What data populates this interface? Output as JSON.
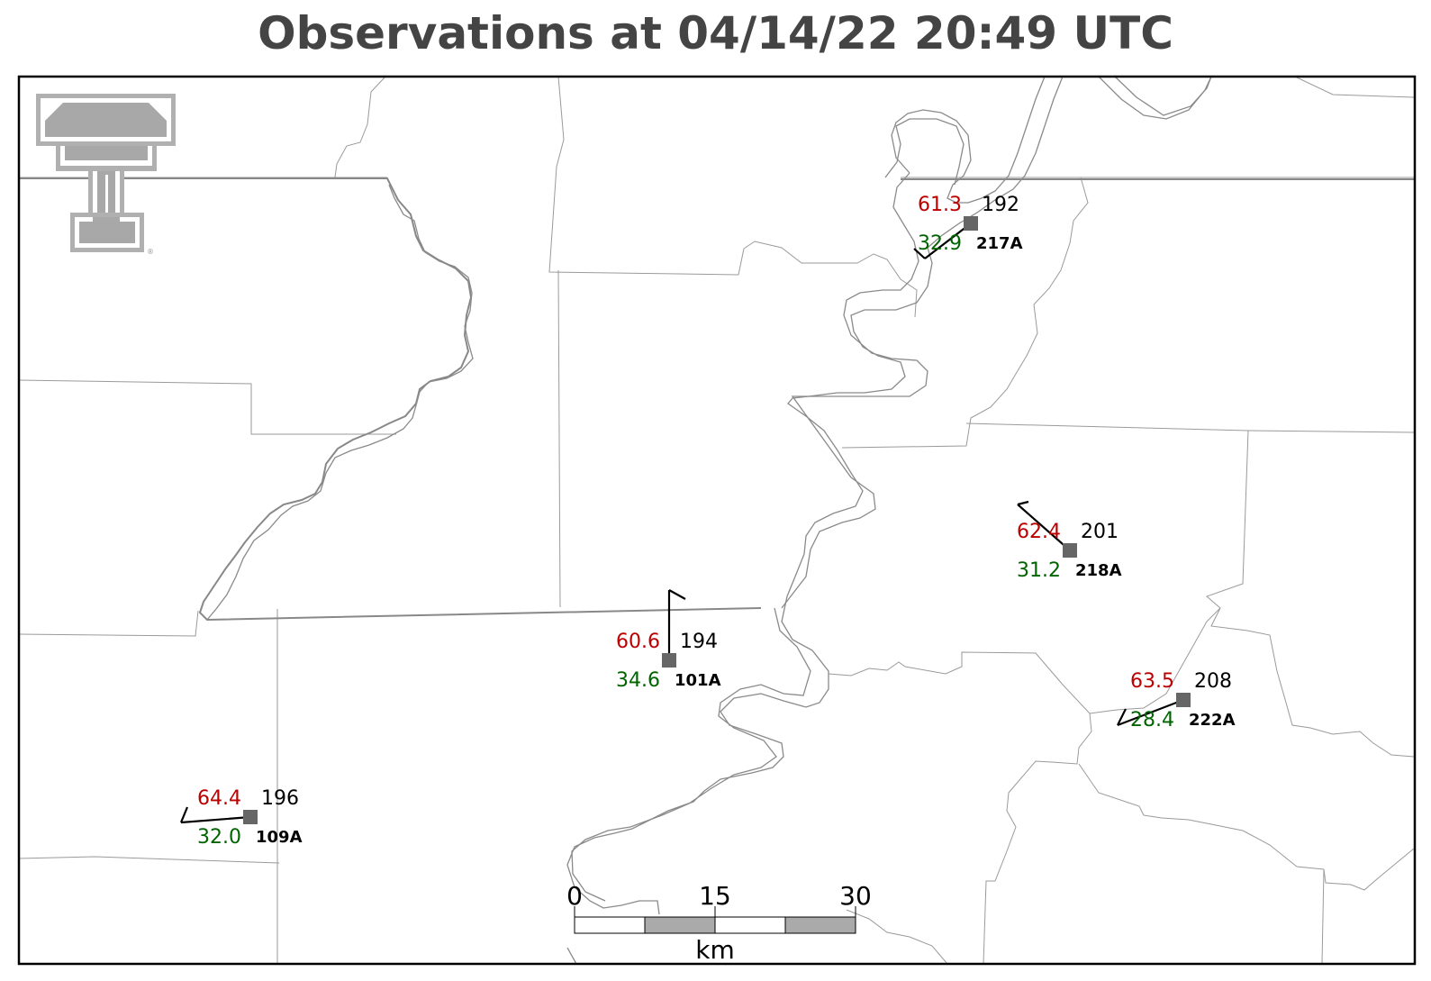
{
  "title": "Observations at 04/14/22 20:49 UTC",
  "logo": {
    "name": "texas-tech-double-t-logo",
    "mark": "®"
  },
  "scale_bar": {
    "ticks": [
      "0",
      "15",
      "30"
    ],
    "unit": "km"
  },
  "colors": {
    "temperature": "#bb0000",
    "dewpoint": "#006400",
    "station_marker": "#666666",
    "frame": "#000000"
  },
  "stations": [
    {
      "id": "217A",
      "temperature": "61.3",
      "dewpoint": "32.9",
      "wind_direction": "192"
    },
    {
      "id": "218A",
      "temperature": "62.4",
      "dewpoint": "31.2",
      "wind_direction": "201"
    },
    {
      "id": "101A",
      "temperature": "60.6",
      "dewpoint": "34.6",
      "wind_direction": "194"
    },
    {
      "id": "222A",
      "temperature": "63.5",
      "dewpoint": "28.4",
      "wind_direction": "208"
    },
    {
      "id": "109A",
      "temperature": "64.4",
      "dewpoint": "32.0",
      "wind_direction": "196"
    }
  ]
}
